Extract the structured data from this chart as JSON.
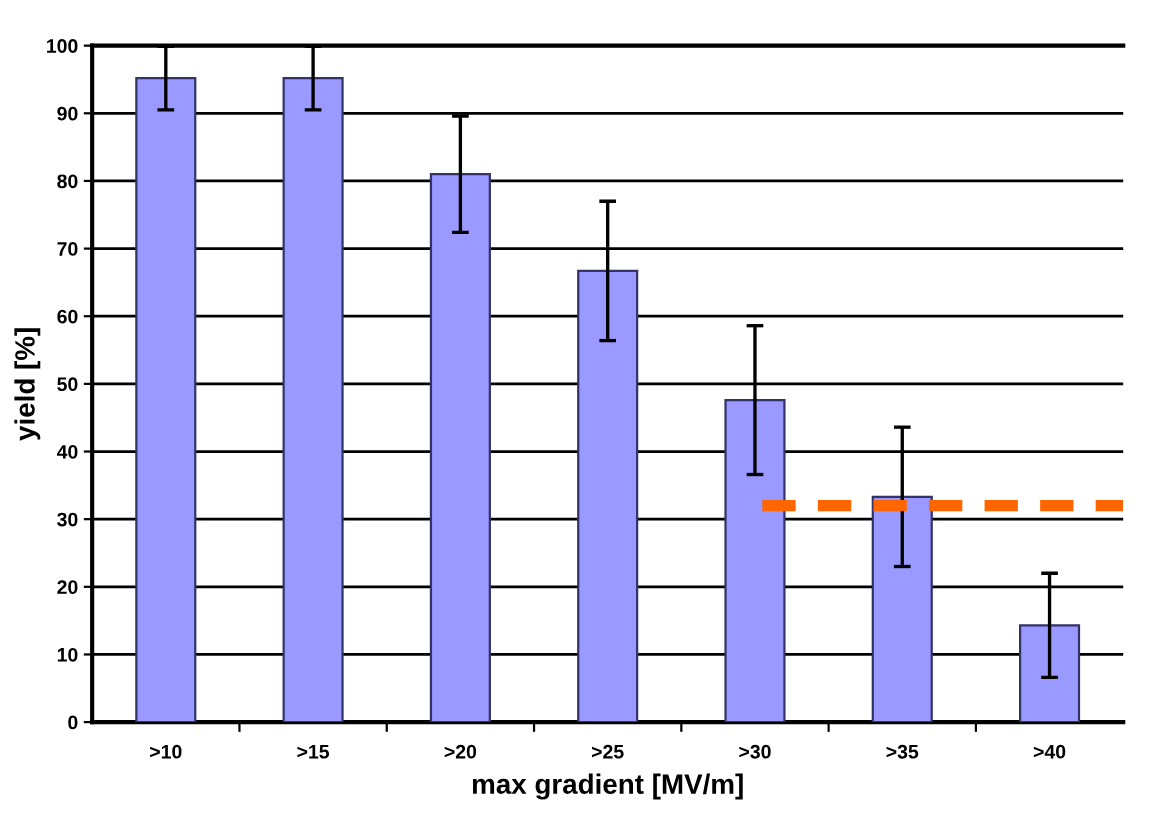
{
  "chart_data": {
    "type": "bar",
    "xlabel": "max gradient [MV/m]",
    "ylabel": "yield [%]",
    "categories": [
      ">10",
      ">15",
      ">20",
      ">25",
      ">30",
      ">35",
      ">40"
    ],
    "values": [
      95.2,
      95.2,
      81,
      66.7,
      47.6,
      33.3,
      14.3
    ],
    "errors": [
      4.7,
      4.7,
      8.6,
      10.3,
      11,
      10.3,
      7.7
    ],
    "color": "#9999ff",
    "ylim": [
      0,
      100
    ],
    "yticks": [
      0,
      10,
      20,
      30,
      40,
      50,
      60,
      70,
      80,
      90,
      100
    ],
    "grid": "y",
    "ref_lines": [
      {
        "axis": "y",
        "value": 32,
        "color": "#ff6600",
        "line_style": "dashed"
      }
    ]
  }
}
